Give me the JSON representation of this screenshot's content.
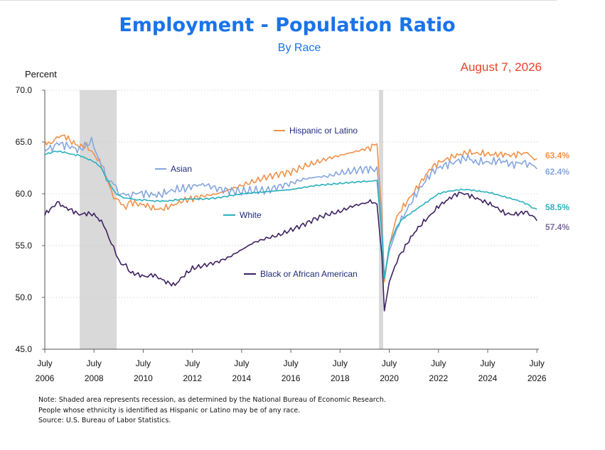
{
  "title": "Employment - Population Ratio",
  "subtitle": "By Race",
  "date_label": "August 7, 2026",
  "notes": [
    "Note: Shaded area represents recession, as determined by the National Bureau of Economic Research.",
    "People whose ethnicity is identified as Hispanic or Latino may be of any race.",
    "Source: U.S. Bureau of Labor Statistics."
  ],
  "chart_data": {
    "type": "line",
    "title": "Employment - Population Ratio",
    "subtitle": "By Race",
    "ylabel": "Percent",
    "xlabel": "",
    "ylim": [
      45.0,
      70.0
    ],
    "xlim": [
      2006.5,
      2026.58
    ],
    "yticks": [
      "70.0",
      "65.0",
      "60.0",
      "55.0",
      "50.0",
      "45.0"
    ],
    "ytick_values": [
      70,
      65,
      60,
      55,
      50,
      45
    ],
    "xticks": [
      {
        "month": "July",
        "year": "2006",
        "x": 2006.5
      },
      {
        "month": "July",
        "year": "2008",
        "x": 2008.5
      },
      {
        "month": "July",
        "year": "2010",
        "x": 2010.5
      },
      {
        "month": "July",
        "year": "2012",
        "x": 2012.5
      },
      {
        "month": "July",
        "year": "2014",
        "x": 2014.5
      },
      {
        "month": "July",
        "year": "2016",
        "x": 2016.5
      },
      {
        "month": "July",
        "year": "2018",
        "x": 2018.5
      },
      {
        "month": "July",
        "year": "2020",
        "x": 2020.5
      },
      {
        "month": "July",
        "year": "2022",
        "x": 2022.5
      },
      {
        "month": "July",
        "year": "2024",
        "x": 2024.5
      },
      {
        "month": "July",
        "year": "2026",
        "x": 2026.5
      }
    ],
    "grid": "horizontal dotted",
    "recessions": [
      [
        2007.92,
        2009.42
      ],
      [
        2020.08,
        2020.25
      ]
    ],
    "series": [
      {
        "name": "Hispanic or Latino",
        "color": "#f0914a",
        "end_label": "63.4%",
        "points": [
          [
            2006.5,
            65.0
          ],
          [
            2006.8,
            64.8
          ],
          [
            2007.0,
            65.5
          ],
          [
            2007.3,
            65.6
          ],
          [
            2007.6,
            65.0
          ],
          [
            2007.9,
            64.6
          ],
          [
            2008.2,
            64.6
          ],
          [
            2008.5,
            63.8
          ],
          [
            2008.8,
            62.8
          ],
          [
            2009.0,
            61.5
          ],
          [
            2009.2,
            60.2
          ],
          [
            2009.4,
            59.5
          ],
          [
            2009.6,
            59.0
          ],
          [
            2009.8,
            58.8
          ],
          [
            2010.0,
            59.2
          ],
          [
            2010.3,
            59.0
          ],
          [
            2010.6,
            58.9
          ],
          [
            2010.9,
            58.6
          ],
          [
            2011.2,
            58.5
          ],
          [
            2011.5,
            58.7
          ],
          [
            2011.8,
            59.0
          ],
          [
            2012.2,
            59.4
          ],
          [
            2012.6,
            59.6
          ],
          [
            2013.0,
            59.8
          ],
          [
            2013.5,
            60.0
          ],
          [
            2014.0,
            60.4
          ],
          [
            2014.5,
            60.8
          ],
          [
            2015.0,
            61.2
          ],
          [
            2015.5,
            61.6
          ],
          [
            2016.0,
            61.9
          ],
          [
            2016.5,
            62.1
          ],
          [
            2017.0,
            62.6
          ],
          [
            2017.5,
            63.0
          ],
          [
            2018.0,
            63.4
          ],
          [
            2018.5,
            63.7
          ],
          [
            2019.0,
            64.0
          ],
          [
            2019.5,
            64.3
          ],
          [
            2019.8,
            64.5
          ],
          [
            2020.0,
            64.8
          ],
          [
            2020.2,
            58.0
          ],
          [
            2020.3,
            51.5
          ],
          [
            2020.5,
            55.0
          ],
          [
            2020.8,
            57.8
          ],
          [
            2021.0,
            58.5
          ],
          [
            2021.3,
            59.5
          ],
          [
            2021.6,
            60.5
          ],
          [
            2021.9,
            61.5
          ],
          [
            2022.2,
            62.5
          ],
          [
            2022.5,
            63.0
          ],
          [
            2022.8,
            63.3
          ],
          [
            2023.1,
            63.6
          ],
          [
            2023.4,
            63.8
          ],
          [
            2023.7,
            64.0
          ],
          [
            2024.0,
            63.9
          ],
          [
            2024.3,
            63.9
          ],
          [
            2024.6,
            63.8
          ],
          [
            2024.9,
            63.8
          ],
          [
            2025.2,
            63.8
          ],
          [
            2025.5,
            63.7
          ],
          [
            2025.8,
            63.9
          ],
          [
            2026.1,
            63.9
          ],
          [
            2026.3,
            63.6
          ],
          [
            2026.5,
            63.4
          ]
        ]
      },
      {
        "name": "Asian",
        "color": "#85a6de",
        "end_label": "62.4%",
        "points": [
          [
            2006.5,
            64.2
          ],
          [
            2006.8,
            64.5
          ],
          [
            2007.0,
            64.9
          ],
          [
            2007.3,
            64.7
          ],
          [
            2007.6,
            64.5
          ],
          [
            2007.9,
            64.2
          ],
          [
            2008.2,
            64.8
          ],
          [
            2008.4,
            65.0
          ],
          [
            2008.6,
            64.0
          ],
          [
            2008.8,
            62.8
          ],
          [
            2009.0,
            61.5
          ],
          [
            2009.2,
            61.2
          ],
          [
            2009.4,
            60.5
          ],
          [
            2009.6,
            60.0
          ],
          [
            2009.8,
            59.8
          ],
          [
            2010.0,
            59.9
          ],
          [
            2010.3,
            60.1
          ],
          [
            2010.6,
            60.0
          ],
          [
            2010.9,
            59.9
          ],
          [
            2011.2,
            59.9
          ],
          [
            2011.5,
            60.2
          ],
          [
            2011.8,
            60.4
          ],
          [
            2012.2,
            60.5
          ],
          [
            2012.6,
            60.8
          ],
          [
            2013.0,
            60.9
          ],
          [
            2013.5,
            60.5
          ],
          [
            2014.0,
            60.3
          ],
          [
            2014.5,
            60.2
          ],
          [
            2015.0,
            60.3
          ],
          [
            2015.5,
            60.3
          ],
          [
            2016.0,
            60.7
          ],
          [
            2016.5,
            61.0
          ],
          [
            2017.0,
            61.4
          ],
          [
            2017.5,
            61.6
          ],
          [
            2018.0,
            61.7
          ],
          [
            2018.5,
            62.0
          ],
          [
            2019.0,
            62.2
          ],
          [
            2019.5,
            62.4
          ],
          [
            2019.8,
            62.4
          ],
          [
            2020.0,
            62.6
          ],
          [
            2020.2,
            57.0
          ],
          [
            2020.3,
            52.0
          ],
          [
            2020.5,
            54.5
          ],
          [
            2020.8,
            56.5
          ],
          [
            2021.0,
            57.5
          ],
          [
            2021.3,
            58.8
          ],
          [
            2021.6,
            60.0
          ],
          [
            2021.9,
            61.0
          ],
          [
            2022.2,
            62.0
          ],
          [
            2022.5,
            62.5
          ],
          [
            2022.8,
            62.8
          ],
          [
            2023.1,
            63.0
          ],
          [
            2023.4,
            63.3
          ],
          [
            2023.7,
            63.5
          ],
          [
            2024.0,
            63.0
          ],
          [
            2024.3,
            63.1
          ],
          [
            2024.6,
            63.0
          ],
          [
            2024.9,
            63.2
          ],
          [
            2025.2,
            63.1
          ],
          [
            2025.5,
            62.8
          ],
          [
            2025.8,
            63.0
          ],
          [
            2026.1,
            63.0
          ],
          [
            2026.3,
            62.7
          ],
          [
            2026.5,
            62.4
          ]
        ]
      },
      {
        "name": "White",
        "color": "#2ab0bd",
        "end_label": "58.5%",
        "points": [
          [
            2006.5,
            63.8
          ],
          [
            2006.8,
            64.0
          ],
          [
            2007.0,
            64.1
          ],
          [
            2007.3,
            64.0
          ],
          [
            2007.6,
            63.8
          ],
          [
            2007.9,
            63.7
          ],
          [
            2008.2,
            63.4
          ],
          [
            2008.5,
            63.1
          ],
          [
            2008.8,
            62.5
          ],
          [
            2009.0,
            61.5
          ],
          [
            2009.2,
            60.7
          ],
          [
            2009.4,
            60.0
          ],
          [
            2009.6,
            59.7
          ],
          [
            2009.8,
            59.6
          ],
          [
            2010.0,
            59.5
          ],
          [
            2010.3,
            59.4
          ],
          [
            2010.6,
            59.4
          ],
          [
            2010.9,
            59.3
          ],
          [
            2011.2,
            59.3
          ],
          [
            2011.5,
            59.3
          ],
          [
            2011.8,
            59.4
          ],
          [
            2012.2,
            59.5
          ],
          [
            2012.6,
            59.5
          ],
          [
            2013.0,
            59.5
          ],
          [
            2013.5,
            59.6
          ],
          [
            2014.0,
            59.8
          ],
          [
            2014.5,
            60.0
          ],
          [
            2015.0,
            60.1
          ],
          [
            2015.5,
            60.2
          ],
          [
            2016.0,
            60.3
          ],
          [
            2016.5,
            60.4
          ],
          [
            2017.0,
            60.6
          ],
          [
            2017.5,
            60.8
          ],
          [
            2018.0,
            60.9
          ],
          [
            2018.5,
            61.0
          ],
          [
            2019.0,
            61.1
          ],
          [
            2019.5,
            61.2
          ],
          [
            2019.8,
            61.2
          ],
          [
            2020.0,
            61.3
          ],
          [
            2020.2,
            56.0
          ],
          [
            2020.3,
            51.8
          ],
          [
            2020.5,
            55.0
          ],
          [
            2020.8,
            56.8
          ],
          [
            2021.0,
            57.5
          ],
          [
            2021.3,
            58.0
          ],
          [
            2021.6,
            58.5
          ],
          [
            2021.9,
            59.0
          ],
          [
            2022.2,
            59.5
          ],
          [
            2022.5,
            60.0
          ],
          [
            2022.8,
            60.2
          ],
          [
            2023.1,
            60.3
          ],
          [
            2023.4,
            60.4
          ],
          [
            2023.7,
            60.4
          ],
          [
            2024.0,
            60.3
          ],
          [
            2024.3,
            60.2
          ],
          [
            2024.6,
            60.1
          ],
          [
            2024.9,
            59.9
          ],
          [
            2025.2,
            59.7
          ],
          [
            2025.5,
            59.5
          ],
          [
            2025.8,
            59.3
          ],
          [
            2026.1,
            59.0
          ],
          [
            2026.3,
            58.7
          ],
          [
            2026.5,
            58.5
          ]
        ]
      },
      {
        "name": "Black or African American",
        "color": "#3d2160",
        "end_label": "57.4%",
        "points": [
          [
            2006.5,
            58.0
          ],
          [
            2006.8,
            58.7
          ],
          [
            2007.0,
            59.2
          ],
          [
            2007.3,
            58.7
          ],
          [
            2007.6,
            58.4
          ],
          [
            2007.9,
            58.0
          ],
          [
            2008.2,
            58.1
          ],
          [
            2008.5,
            58.0
          ],
          [
            2008.8,
            57.3
          ],
          [
            2009.0,
            56.4
          ],
          [
            2009.2,
            55.3
          ],
          [
            2009.4,
            54.1
          ],
          [
            2009.6,
            53.3
          ],
          [
            2009.8,
            53.0
          ],
          [
            2010.0,
            52.4
          ],
          [
            2010.3,
            52.2
          ],
          [
            2010.6,
            52.0
          ],
          [
            2010.9,
            52.2
          ],
          [
            2011.2,
            51.8
          ],
          [
            2011.5,
            51.4
          ],
          [
            2011.8,
            51.2
          ],
          [
            2012.1,
            52.0
          ],
          [
            2012.5,
            52.8
          ],
          [
            2013.0,
            53.1
          ],
          [
            2013.5,
            53.4
          ],
          [
            2014.0,
            53.9
          ],
          [
            2014.5,
            54.6
          ],
          [
            2015.0,
            55.3
          ],
          [
            2015.5,
            55.7
          ],
          [
            2016.0,
            56.0
          ],
          [
            2016.5,
            56.5
          ],
          [
            2017.0,
            57.0
          ],
          [
            2017.5,
            57.6
          ],
          [
            2018.0,
            58.0
          ],
          [
            2018.5,
            58.3
          ],
          [
            2019.0,
            58.8
          ],
          [
            2019.5,
            59.1
          ],
          [
            2019.8,
            59.3
          ],
          [
            2020.0,
            59.0
          ],
          [
            2020.2,
            54.0
          ],
          [
            2020.3,
            48.7
          ],
          [
            2020.5,
            51.5
          ],
          [
            2020.8,
            53.5
          ],
          [
            2021.0,
            54.3
          ],
          [
            2021.3,
            55.5
          ],
          [
            2021.6,
            56.5
          ],
          [
            2021.9,
            57.3
          ],
          [
            2022.2,
            58.0
          ],
          [
            2022.5,
            58.8
          ],
          [
            2022.8,
            59.3
          ],
          [
            2023.1,
            59.8
          ],
          [
            2023.4,
            60.1
          ],
          [
            2023.7,
            59.9
          ],
          [
            2024.0,
            59.6
          ],
          [
            2024.3,
            59.3
          ],
          [
            2024.6,
            59.0
          ],
          [
            2024.9,
            58.6
          ],
          [
            2025.2,
            58.1
          ],
          [
            2025.5,
            58.0
          ],
          [
            2025.8,
            58.1
          ],
          [
            2026.1,
            58.3
          ],
          [
            2026.3,
            57.8
          ],
          [
            2026.5,
            57.4
          ]
        ]
      }
    ],
    "annotations": [
      "Hispanic or Latino",
      "Asian",
      "White",
      "Black or African American"
    ]
  }
}
